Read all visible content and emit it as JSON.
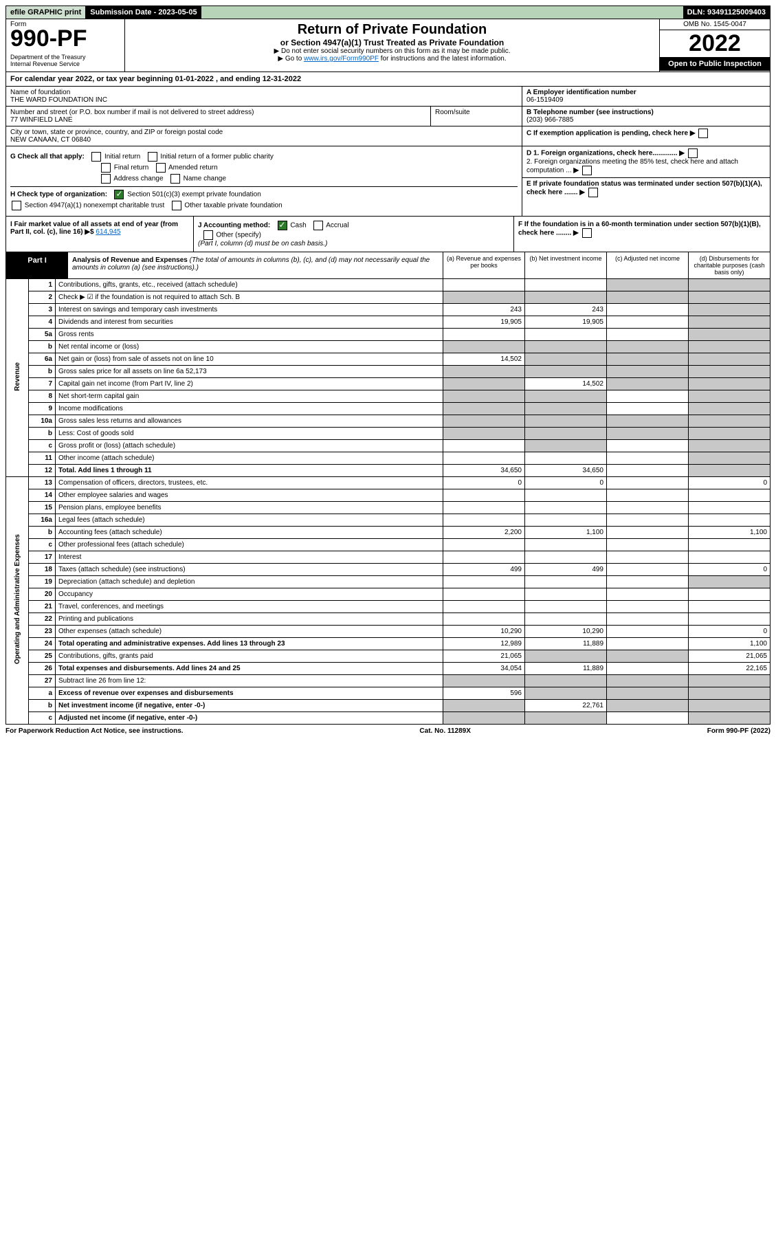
{
  "topbar": {
    "efile": "efile GRAPHIC print",
    "submission": "Submission Date - 2023-05-05",
    "dln": "DLN: 93491125009403"
  },
  "header": {
    "form_label": "Form",
    "form_number": "990-PF",
    "dept": "Department of the Treasury",
    "irs": "Internal Revenue Service",
    "title": "Return of Private Foundation",
    "subtitle": "or Section 4947(a)(1) Trust Treated as Private Foundation",
    "note1": "▶ Do not enter social security numbers on this form as it may be made public.",
    "note2_pre": "▶ Go to ",
    "note2_link": "www.irs.gov/Form990PF",
    "note2_post": " for instructions and the latest information.",
    "omb": "OMB No. 1545-0047",
    "year": "2022",
    "inspection": "Open to Public Inspection"
  },
  "calyear": "For calendar year 2022, or tax year beginning 01-01-2022                     , and ending 12-31-2022",
  "entity": {
    "name_label": "Name of foundation",
    "name": "THE WARD FOUNDATION INC",
    "addr_label": "Number and street (or P.O. box number if mail is not delivered to street address)",
    "addr": "77 WINFIELD LANE",
    "room_label": "Room/suite",
    "city_label": "City or town, state or province, country, and ZIP or foreign postal code",
    "city": "NEW CANAAN, CT  06840",
    "ein_label": "A Employer identification number",
    "ein": "06-1519409",
    "tel_label": "B Telephone number (see instructions)",
    "tel": "(203) 966-7885",
    "c_label": "C If exemption application is pending, check here",
    "d1": "D 1. Foreign organizations, check here.............",
    "d2": "    2. Foreign organizations meeting the 85% test, check here and attach computation ...",
    "e": "E  If private foundation status was terminated under section 507(b)(1)(A), check here .......",
    "f": "F  If the foundation is in a 60-month termination under section 507(b)(1)(B), check here ........"
  },
  "g": {
    "label": "G Check all that apply:",
    "initial": "Initial return",
    "initial_former": "Initial return of a former public charity",
    "final": "Final return",
    "amended": "Amended return",
    "address": "Address change",
    "name": "Name change"
  },
  "h": {
    "label": "H Check type of organization:",
    "501c3": "Section 501(c)(3) exempt private foundation",
    "4947": "Section 4947(a)(1) nonexempt charitable trust",
    "other_tax": "Other taxable private foundation"
  },
  "i": {
    "label": "I Fair market value of all assets at end of year (from Part II, col. (c), line 16) ▶$ ",
    "value": "614,945"
  },
  "j": {
    "label": "J Accounting method:",
    "cash": "Cash",
    "accrual": "Accrual",
    "other": "Other (specify)",
    "note": "(Part I, column (d) must be on cash basis.)"
  },
  "part1": {
    "label": "Part I",
    "title": "Analysis of Revenue and Expenses",
    "note": " (The total of amounts in columns (b), (c), and (d) may not necessarily equal the amounts in column (a) (see instructions).)",
    "col_a": "(a)   Revenue and expenses per books",
    "col_b": "(b)   Net investment income",
    "col_c": "(c)   Adjusted net income",
    "col_d": "(d)   Disbursements for charitable purposes (cash basis only)"
  },
  "sections": {
    "revenue": "Revenue",
    "opex": "Operating and Administrative Expenses"
  },
  "rows": [
    {
      "ln": "1",
      "desc": "Contributions, gifts, grants, etc., received (attach schedule)",
      "a": "",
      "b": "",
      "c": "shade",
      "d": "shade"
    },
    {
      "ln": "2",
      "desc": "Check ▶ ☑ if the foundation is not required to attach Sch. B",
      "a": "shade",
      "b": "shade",
      "c": "shade",
      "d": "shade",
      "descbold": false
    },
    {
      "ln": "3",
      "desc": "Interest on savings and temporary cash investments",
      "a": "243",
      "b": "243",
      "c": "",
      "d": "shade"
    },
    {
      "ln": "4",
      "desc": "Dividends and interest from securities",
      "a": "19,905",
      "b": "19,905",
      "c": "",
      "d": "shade"
    },
    {
      "ln": "5a",
      "desc": "Gross rents",
      "a": "",
      "b": "",
      "c": "",
      "d": "shade"
    },
    {
      "ln": "b",
      "desc": "Net rental income or (loss)",
      "a": "shade",
      "b": "shade",
      "c": "shade",
      "d": "shade"
    },
    {
      "ln": "6a",
      "desc": "Net gain or (loss) from sale of assets not on line 10",
      "a": "14,502",
      "b": "shade",
      "c": "shade",
      "d": "shade"
    },
    {
      "ln": "b",
      "desc": "Gross sales price for all assets on line 6a             52,173",
      "a": "shade",
      "b": "shade",
      "c": "shade",
      "d": "shade"
    },
    {
      "ln": "7",
      "desc": "Capital gain net income (from Part IV, line 2)",
      "a": "shade",
      "b": "14,502",
      "c": "shade",
      "d": "shade"
    },
    {
      "ln": "8",
      "desc": "Net short-term capital gain",
      "a": "shade",
      "b": "shade",
      "c": "",
      "d": "shade"
    },
    {
      "ln": "9",
      "desc": "Income modifications",
      "a": "shade",
      "b": "shade",
      "c": "",
      "d": "shade"
    },
    {
      "ln": "10a",
      "desc": "Gross sales less returns and allowances",
      "a": "shade",
      "b": "shade",
      "c": "shade",
      "d": "shade"
    },
    {
      "ln": "b",
      "desc": "Less: Cost of goods sold",
      "a": "shade",
      "b": "shade",
      "c": "shade",
      "d": "shade"
    },
    {
      "ln": "c",
      "desc": "Gross profit or (loss) (attach schedule)",
      "a": "",
      "b": "shade",
      "c": "",
      "d": "shade"
    },
    {
      "ln": "11",
      "desc": "Other income (attach schedule)",
      "a": "",
      "b": "",
      "c": "",
      "d": "shade"
    },
    {
      "ln": "12",
      "desc": "Total. Add lines 1 through 11",
      "a": "34,650",
      "b": "34,650",
      "c": "",
      "d": "shade",
      "bold": true
    },
    {
      "ln": "13",
      "desc": "Compensation of officers, directors, trustees, etc.",
      "a": "0",
      "b": "0",
      "c": "",
      "d": "0"
    },
    {
      "ln": "14",
      "desc": "Other employee salaries and wages",
      "a": "",
      "b": "",
      "c": "",
      "d": ""
    },
    {
      "ln": "15",
      "desc": "Pension plans, employee benefits",
      "a": "",
      "b": "",
      "c": "",
      "d": ""
    },
    {
      "ln": "16a",
      "desc": "Legal fees (attach schedule)",
      "a": "",
      "b": "",
      "c": "",
      "d": ""
    },
    {
      "ln": "b",
      "desc": "Accounting fees (attach schedule)",
      "a": "2,200",
      "b": "1,100",
      "c": "",
      "d": "1,100"
    },
    {
      "ln": "c",
      "desc": "Other professional fees (attach schedule)",
      "a": "",
      "b": "",
      "c": "",
      "d": ""
    },
    {
      "ln": "17",
      "desc": "Interest",
      "a": "",
      "b": "",
      "c": "",
      "d": ""
    },
    {
      "ln": "18",
      "desc": "Taxes (attach schedule) (see instructions)",
      "a": "499",
      "b": "499",
      "c": "",
      "d": "0"
    },
    {
      "ln": "19",
      "desc": "Depreciation (attach schedule) and depletion",
      "a": "",
      "b": "",
      "c": "",
      "d": "shade"
    },
    {
      "ln": "20",
      "desc": "Occupancy",
      "a": "",
      "b": "",
      "c": "",
      "d": ""
    },
    {
      "ln": "21",
      "desc": "Travel, conferences, and meetings",
      "a": "",
      "b": "",
      "c": "",
      "d": ""
    },
    {
      "ln": "22",
      "desc": "Printing and publications",
      "a": "",
      "b": "",
      "c": "",
      "d": ""
    },
    {
      "ln": "23",
      "desc": "Other expenses (attach schedule)",
      "a": "10,290",
      "b": "10,290",
      "c": "",
      "d": "0"
    },
    {
      "ln": "24",
      "desc": "Total operating and administrative expenses. Add lines 13 through 23",
      "a": "12,989",
      "b": "11,889",
      "c": "",
      "d": "1,100",
      "bold": true
    },
    {
      "ln": "25",
      "desc": "Contributions, gifts, grants paid",
      "a": "21,065",
      "b": "shade",
      "c": "shade",
      "d": "21,065"
    },
    {
      "ln": "26",
      "desc": "Total expenses and disbursements. Add lines 24 and 25",
      "a": "34,054",
      "b": "11,889",
      "c": "",
      "d": "22,165",
      "bold": true
    },
    {
      "ln": "27",
      "desc": "Subtract line 26 from line 12:",
      "a": "shade",
      "b": "shade",
      "c": "shade",
      "d": "shade"
    },
    {
      "ln": "a",
      "desc": "Excess of revenue over expenses and disbursements",
      "a": "596",
      "b": "shade",
      "c": "shade",
      "d": "shade",
      "bold": true
    },
    {
      "ln": "b",
      "desc": "Net investment income (if negative, enter -0-)",
      "a": "shade",
      "b": "22,761",
      "c": "shade",
      "d": "shade",
      "bold": true
    },
    {
      "ln": "c",
      "desc": "Adjusted net income (if negative, enter -0-)",
      "a": "shade",
      "b": "shade",
      "c": "",
      "d": "shade",
      "bold": true
    }
  ],
  "footer": {
    "left": "For Paperwork Reduction Act Notice, see instructions.",
    "mid": "Cat. No. 11289X",
    "right": "Form 990-PF (2022)"
  }
}
